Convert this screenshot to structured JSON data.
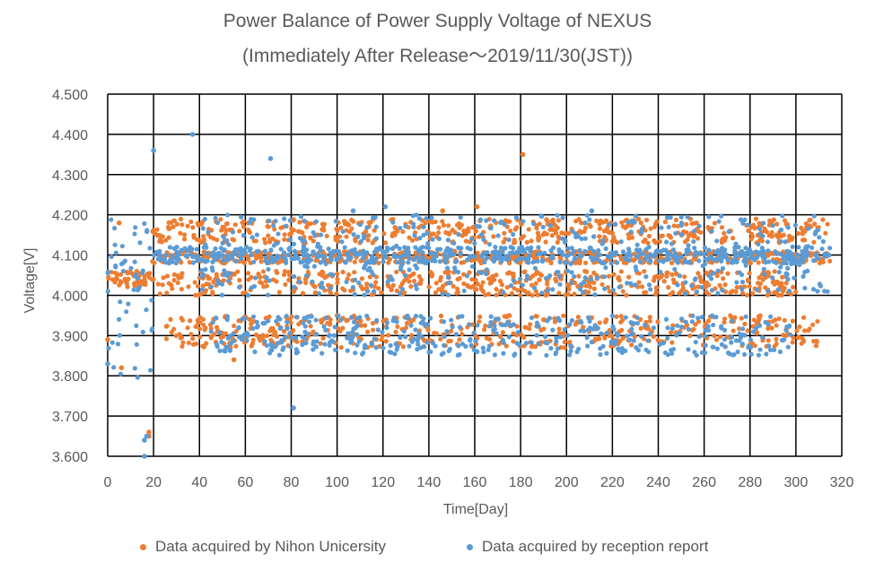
{
  "chart_data": {
    "type": "scatter",
    "title": "Power Balance of Power Supply Voltage of NEXUS",
    "subtitle": "(Immediately After Release～2019/11/30(JST))",
    "xlabel": "Time[Day]",
    "ylabel": "Voltage[V]",
    "xlim": [
      0,
      320
    ],
    "ylim": [
      3.6,
      4.5
    ],
    "x_ticks": [
      "0",
      "20",
      "40",
      "60",
      "80",
      "100",
      "120",
      "140",
      "160",
      "180",
      "200",
      "220",
      "240",
      "260",
      "280",
      "300",
      "320"
    ],
    "y_ticks": [
      "3.600",
      "3.700",
      "3.800",
      "3.900",
      "4.000",
      "4.100",
      "4.200",
      "4.300",
      "4.400",
      "4.500"
    ],
    "grid": true,
    "legend_position": "bottom",
    "colors": {
      "orange": "#ED7D31",
      "blue": "#5B9BD5",
      "grid": "#000000"
    },
    "series": [
      {
        "name": "Data acquired by Nihon Unicersity",
        "color": "#ED7D31",
        "bands": [
          {
            "x": [
              0,
              20
            ],
            "y": [
              4.02,
              4.06
            ]
          },
          {
            "x": [
              19,
              315
            ],
            "y": [
              4.13,
              4.19
            ]
          },
          {
            "x": [
              19,
              315
            ],
            "y": [
              4.08,
              4.11
            ]
          },
          {
            "x": [
              22,
              300
            ],
            "y": [
              4.0,
              4.06
            ]
          },
          {
            "x": [
              25,
              310
            ],
            "y": [
              3.87,
              3.95
            ]
          }
        ],
        "points": [
          {
            "x": 181,
            "y": 4.35
          },
          {
            "x": 161,
            "y": 4.22
          },
          {
            "x": 146,
            "y": 4.21
          },
          {
            "x": 18,
            "y": 3.66
          },
          {
            "x": 18,
            "y": 3.65
          },
          {
            "x": 6,
            "y": 3.82
          },
          {
            "x": 55,
            "y": 3.84
          },
          {
            "x": 0,
            "y": 3.89
          },
          {
            "x": 5,
            "y": 4.18
          }
        ]
      },
      {
        "name": "Data acquired by reception report",
        "color": "#5B9BD5",
        "bands": [
          {
            "x": [
              0,
              20
            ],
            "y": [
              3.79,
              4.2
            ]
          },
          {
            "x": [
              20,
              315
            ],
            "y": [
              4.08,
              4.12
            ]
          },
          {
            "x": [
              40,
              315
            ],
            "y": [
              4.0,
              4.2
            ]
          },
          {
            "x": [
              45,
              300
            ],
            "y": [
              3.85,
              3.95
            ]
          }
        ],
        "points": [
          {
            "x": 20,
            "y": 4.36
          },
          {
            "x": 37,
            "y": 4.4
          },
          {
            "x": 71,
            "y": 4.34
          },
          {
            "x": 81,
            "y": 3.72
          },
          {
            "x": 16,
            "y": 3.6
          },
          {
            "x": 16,
            "y": 3.64
          },
          {
            "x": 17,
            "y": 3.65
          },
          {
            "x": 0,
            "y": 3.83
          },
          {
            "x": 107,
            "y": 4.21
          },
          {
            "x": 121,
            "y": 4.22
          },
          {
            "x": 161,
            "y": 3.86
          },
          {
            "x": 211,
            "y": 4.21
          }
        ]
      }
    ]
  }
}
